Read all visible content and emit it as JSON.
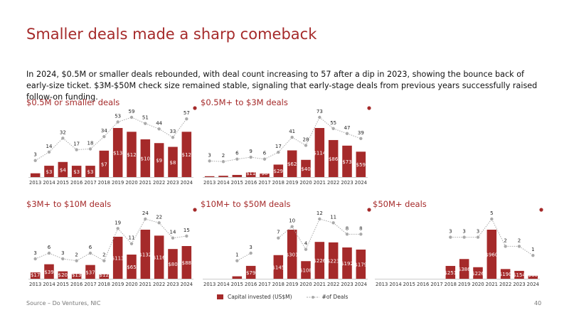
{
  "title": "Smaller deals made a sharp comeback",
  "subtitle": "In 2024, $0.5M or smaller deals rebounded, with deal count increasing to 57 after a dip in 2023, showing the bounce back of early-size ticket. $3M-$50M check size remained stable, signaling that early-stage deals from previous years successfully raised follow-on funding.",
  "legend": {
    "bar": "Capital invested (US$M)",
    "line": "#of Deals"
  },
  "source": "Source – Do Ventures, NIC",
  "page_number": "40",
  "colors": {
    "bar": "#a52a2a",
    "line": "#aaaaaa",
    "accent": "#a52a2a"
  },
  "chart_data": [
    {
      "type": "bar",
      "title": "$0.5M or smaller deals",
      "categories": [
        "2013",
        "2014",
        "2015",
        "2016",
        "2017",
        "2018",
        "2019",
        "2020",
        "2021",
        "2022",
        "2023",
        "2024"
      ],
      "series": [
        {
          "name": "Capital invested (US$M)",
          "values": [
            1,
            3,
            4,
            3,
            3,
            7,
            13,
            12,
            10,
            9,
            8,
            12
          ],
          "labels": [
            "",
            "$3",
            "$4",
            "$3",
            "$3",
            "$7",
            "$13",
            "$12",
            "$10",
            "$9",
            "$8",
            "$12"
          ]
        },
        {
          "name": "#of Deals",
          "values": [
            3,
            14,
            32,
            17,
            18,
            34,
            53,
            59,
            51,
            44,
            33,
            57
          ],
          "labels": [
            "3",
            "14",
            "32",
            "17",
            "18",
            "34",
            "53",
            "59",
            "51",
            "44",
            "33",
            "57"
          ]
        }
      ]
    },
    {
      "type": "bar",
      "title": "$0.5M+ to $3M deals",
      "categories": [
        "2013",
        "2014",
        "2015",
        "2016",
        "2017",
        "2018",
        "2019",
        "2020",
        "2021",
        "2022",
        "2023",
        "2024"
      ],
      "series": [
        {
          "name": "Capital invested (US$M)",
          "values": [
            2,
            3,
            5,
            11,
            8,
            29,
            62,
            40,
            114,
            86,
            73,
            59
          ],
          "labels": [
            "",
            "",
            "",
            "$11",
            "$8",
            "$29",
            "$62",
            "$40",
            "$114",
            "$86",
            "$73",
            "$59"
          ]
        },
        {
          "name": "#of Deals",
          "values": [
            3,
            2,
            6,
            9,
            6,
            17,
            41,
            28,
            73,
            55,
            47,
            39
          ],
          "labels": [
            "3",
            "2",
            "6",
            "9",
            "6",
            "17",
            "41",
            "28",
            "73",
            "55",
            "47",
            "39"
          ]
        }
      ]
    },
    {
      "type": "bar",
      "title": "$3M+ to $10M deals",
      "categories": [
        "2013",
        "2014",
        "2015",
        "2016",
        "2017",
        "2018",
        "2019",
        "2020",
        "2021",
        "2022",
        "2023",
        "2024"
      ],
      "series": [
        {
          "name": "Capital invested (US$M)",
          "values": [
            17,
            39,
            20,
            13,
            37,
            12,
            113,
            65,
            132,
            116,
            80,
            88
          ],
          "labels": [
            "$17",
            "$39",
            "$20",
            "$13",
            "$37",
            "$12",
            "$113",
            "$65",
            "$132",
            "$116",
            "$80",
            "$88"
          ]
        },
        {
          "name": "#of Deals",
          "values": [
            3,
            6,
            3,
            2,
            6,
            2,
            19,
            11,
            24,
            22,
            14,
            15
          ],
          "labels": [
            "3",
            "6",
            "3",
            "2",
            "6",
            "2",
            "19",
            "11",
            "24",
            "22",
            "14",
            "15"
          ]
        }
      ]
    },
    {
      "type": "bar",
      "title": "$10M+ to $50M deals",
      "categories": [
        "2013",
        "2014",
        "2015",
        "2016",
        "2017",
        "2018",
        "2019",
        "2020",
        "2021",
        "2022",
        "2023",
        "2024"
      ],
      "series": [
        {
          "name": "Capital invested (US$M)",
          "values": [
            0,
            0,
            15,
            79,
            0,
            145,
            301,
            108,
            226,
            223,
            192,
            179
          ],
          "labels": [
            "",
            "",
            "",
            "$79",
            "",
            "$145",
            "$301",
            "$108",
            "$226",
            "$223",
            "$192",
            "$179"
          ]
        },
        {
          "name": "#of Deals",
          "values": [
            null,
            null,
            1,
            3,
            null,
            7,
            10,
            4,
            12,
            11,
            8,
            8
          ],
          "labels": [
            "",
            "",
            "1",
            "3",
            "",
            "7",
            "10",
            "4",
            "12",
            "11",
            "8",
            "8"
          ]
        }
      ]
    },
    {
      "type": "bar",
      "title": "$50M+ deals",
      "categories": [
        "2013",
        "2014",
        "2015",
        "2016",
        "2017",
        "2018",
        "2019",
        "2020",
        "2021",
        "2022",
        "2023",
        "2024"
      ],
      "series": [
        {
          "name": "Capital invested (US$M)",
          "values": [
            0,
            0,
            0,
            0,
            0,
            251,
            386,
            226,
            960,
            190,
            154,
            60
          ],
          "labels": [
            "",
            "",
            "",
            "",
            "",
            "$251",
            "$386",
            "$226",
            "$960",
            "$190",
            "$154",
            "$60"
          ]
        },
        {
          "name": "#of Deals",
          "values": [
            null,
            null,
            null,
            null,
            null,
            3,
            3,
            3,
            5,
            2,
            2,
            1
          ],
          "labels": [
            "",
            "",
            "",
            "",
            "",
            "3",
            "3",
            "3",
            "5",
            "2",
            "2",
            "1"
          ]
        }
      ]
    }
  ]
}
